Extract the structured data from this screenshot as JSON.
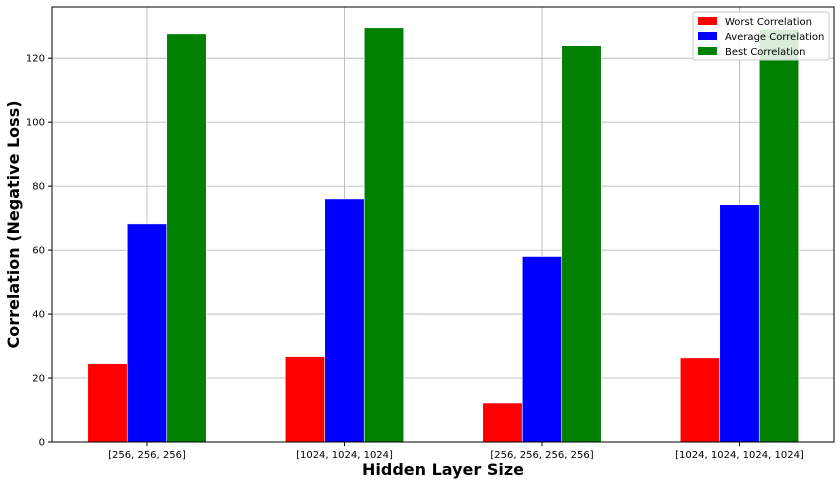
{
  "chart_data": {
    "type": "bar",
    "title": "",
    "xlabel": "Hidden Layer Size",
    "ylabel": "Correlation (Negative Loss)",
    "categories": [
      "[256, 256, 256]",
      "[1024, 1024, 1024]",
      "[256, 256, 256, 256]",
      "[1024, 1024, 1024, 1024]"
    ],
    "series": [
      {
        "name": "Worst Correlation",
        "color": "#ff0000",
        "values": [
          24.5,
          26.7,
          12.2,
          26.3
        ]
      },
      {
        "name": "Average Correlation",
        "color": "#0000ff",
        "values": [
          68.2,
          76.0,
          58.0,
          74.2
        ]
      },
      {
        "name": "Best Correlation",
        "color": "#008000",
        "values": [
          127.6,
          129.5,
          123.9,
          129.0
        ]
      }
    ],
    "ylim": [
      0,
      136
    ],
    "yticks": [
      0,
      20,
      40,
      60,
      80,
      100,
      120
    ],
    "grid": true,
    "legend_position": "top-right"
  }
}
